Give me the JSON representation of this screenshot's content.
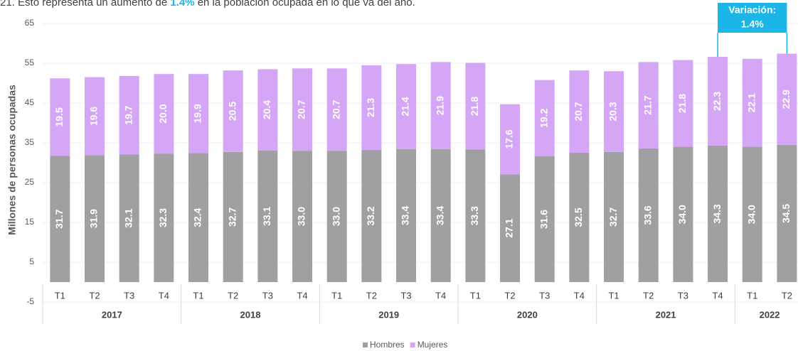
{
  "intro_text": {
    "before": "21. Esto representa un aumento de ",
    "highlight": "1.4%",
    "after": " en la población ocupada en lo que va del año."
  },
  "chart_data": {
    "type": "stacked_bar",
    "y_label": "Millones de personas ocupadas",
    "category_groups": [
      {
        "label": "2017",
        "categories": [
          "T1",
          "T2",
          "T3",
          "T4"
        ]
      },
      {
        "label": "2018",
        "categories": [
          "T1",
          "T2",
          "T3",
          "T4"
        ]
      },
      {
        "label": "2019",
        "categories": [
          "T1",
          "T2",
          "T3",
          "T4"
        ]
      },
      {
        "label": "2020",
        "categories": [
          "T1",
          "T2",
          "T3",
          "T4"
        ]
      },
      {
        "label": "2021",
        "categories": [
          "T1",
          "T2",
          "T3",
          "T4"
        ]
      },
      {
        "label": "2022",
        "categories": [
          "T1",
          "T2"
        ]
      }
    ],
    "series": [
      {
        "name": "Hombres",
        "color": "#a0a0a2",
        "values": [
          31.7,
          31.9,
          32.1,
          32.3,
          32.4,
          32.7,
          33.1,
          33.0,
          33.0,
          33.2,
          33.4,
          33.4,
          33.3,
          27.1,
          31.6,
          32.5,
          32.7,
          33.6,
          34.0,
          34.3,
          34.0,
          34.5
        ],
        "value_labels": [
          "31.7",
          "31.9",
          "32.1",
          "32.3",
          "32.4",
          "32.7",
          "33.1",
          "33.0",
          "33.0",
          "33.2",
          "33.4",
          "33.4",
          "33.3",
          "27.1",
          "31.6",
          "32.5",
          "32.7",
          "33.6",
          "34.0",
          "34.3",
          "34.0",
          "34.5"
        ]
      },
      {
        "name": "Mujeres",
        "color": "#d5a6f6",
        "values": [
          19.5,
          19.6,
          19.7,
          20.0,
          19.9,
          20.5,
          20.4,
          20.7,
          20.7,
          21.3,
          21.4,
          21.9,
          21.8,
          17.6,
          19.2,
          20.7,
          20.3,
          21.7,
          21.8,
          22.3,
          22.1,
          22.9
        ],
        "value_labels": [
          "19.5",
          "19.6",
          "19.7",
          "20.0",
          "19.9",
          "20.5",
          "20.4",
          "20.7",
          "20.7",
          "21.3",
          "21.4",
          "21.9",
          "21.8",
          "17.6",
          "19.2",
          "20.7",
          "20.3",
          "21.7",
          "21.8",
          "22.3",
          "22.1",
          "22.9"
        ]
      }
    ],
    "ylim": [
      -5,
      65
    ],
    "yticks": [
      -5,
      5,
      15,
      25,
      35,
      45,
      55,
      65
    ],
    "grid": true,
    "annotation": {
      "title": "Variación:",
      "text": "1.4%",
      "color": "#1cb5e8"
    },
    "legend": "bottom"
  }
}
